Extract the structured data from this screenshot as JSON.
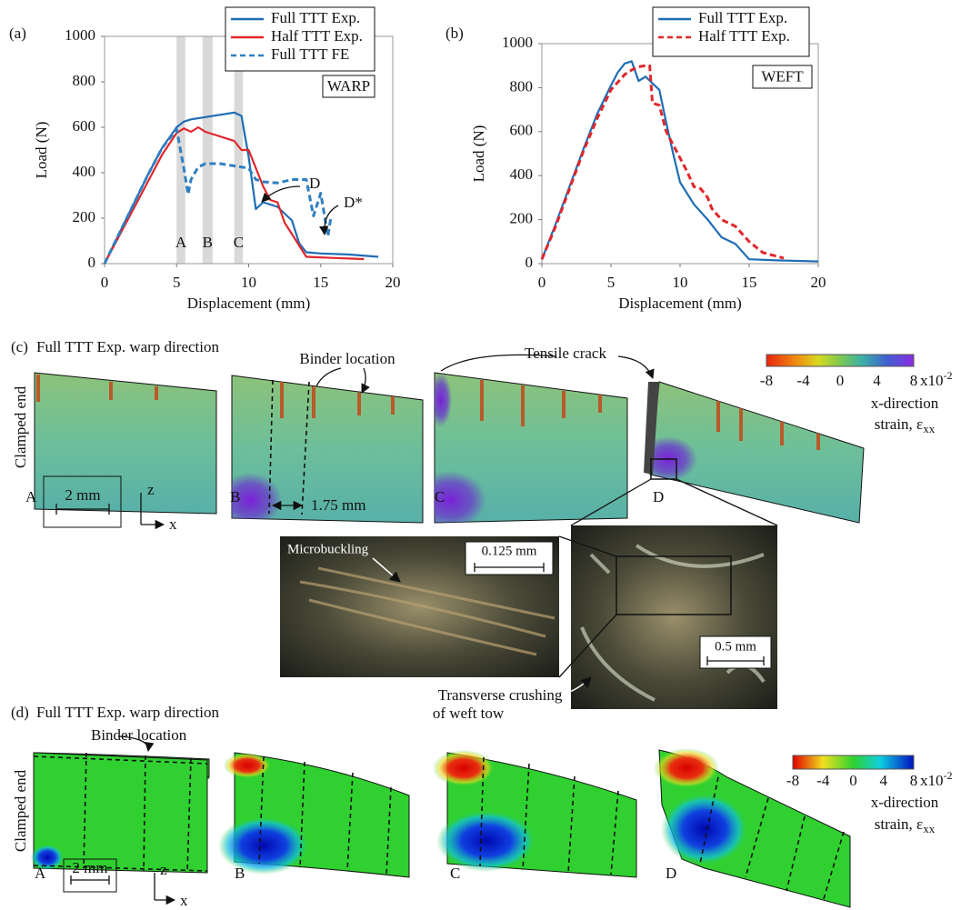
{
  "chart_data": [
    {
      "type": "line",
      "panel": "(a)",
      "xlabel": "Displacement (mm)",
      "ylabel": "Load (N)",
      "xlim": [
        0,
        20
      ],
      "xticks": [
        0,
        5,
        10,
        15,
        20
      ],
      "ylim": [
        0,
        1000
      ],
      "yticks": [
        0,
        200,
        400,
        600,
        800,
        1000
      ],
      "box_label": "WARP",
      "bands": [
        {
          "label": "A",
          "x0": 5,
          "x1": 5.6
        },
        {
          "label": "B",
          "x0": 6.8,
          "x1": 7.5
        },
        {
          "label": "C",
          "x0": 9,
          "x1": 9.6
        }
      ],
      "annotations": [
        "D",
        "D*"
      ],
      "series": [
        {
          "name": "Full TTT Exp.",
          "color": "#1f6db5",
          "style": "solid",
          "x": [
            0,
            1,
            2,
            3,
            4,
            5,
            5.5,
            6,
            7,
            8,
            9,
            9.5,
            10,
            10.5,
            11,
            12,
            13,
            13.5,
            14,
            15,
            17,
            19
          ],
          "values": [
            0,
            130,
            260,
            390,
            510,
            600,
            625,
            635,
            645,
            655,
            665,
            650,
            470,
            240,
            270,
            250,
            190,
            90,
            50,
            45,
            40,
            30
          ]
        },
        {
          "name": "Half TTT Exp.",
          "color": "#e0262b",
          "style": "solid",
          "x": [
            0,
            1,
            2,
            3,
            4,
            5,
            5.5,
            6,
            6.5,
            7,
            8,
            9,
            9.5,
            10,
            11,
            11.5,
            12,
            12.5,
            13,
            14,
            16,
            18
          ],
          "values": [
            0,
            120,
            240,
            360,
            480,
            575,
            595,
            580,
            600,
            580,
            560,
            540,
            500,
            500,
            340,
            280,
            270,
            180,
            130,
            30,
            25,
            20
          ]
        },
        {
          "name": "Full TTT FE",
          "color": "#2f7fc1",
          "style": "dashed",
          "x": [
            0,
            1,
            2,
            3,
            4,
            5,
            5.5,
            5.8,
            6,
            6.5,
            7,
            8,
            9,
            10,
            10.5,
            11,
            12,
            13,
            14,
            14.5,
            15,
            15.5,
            15.7
          ],
          "values": [
            0,
            130,
            260,
            390,
            510,
            590,
            420,
            305,
            370,
            425,
            440,
            440,
            430,
            420,
            370,
            360,
            355,
            370,
            370,
            210,
            310,
            120,
            200
          ]
        }
      ]
    },
    {
      "type": "line",
      "panel": "(b)",
      "xlabel": "Displacement (mm)",
      "ylabel": "Load (N)",
      "xlim": [
        0,
        20
      ],
      "xticks": [
        0,
        5,
        10,
        15,
        20
      ],
      "ylim": [
        0,
        1000
      ],
      "yticks": [
        0,
        200,
        400,
        600,
        800,
        1000
      ],
      "box_label": "WEFT",
      "series": [
        {
          "name": "Full TTT Exp.",
          "color": "#1f6db5",
          "style": "solid",
          "x": [
            0,
            1,
            2,
            3,
            4,
            5,
            5.5,
            6,
            6.5,
            7,
            7.5,
            8,
            8.5,
            9,
            9.5,
            10,
            10.5,
            11,
            12,
            13,
            14,
            15,
            17,
            20
          ],
          "values": [
            20,
            180,
            350,
            520,
            680,
            810,
            870,
            910,
            920,
            830,
            850,
            820,
            790,
            640,
            500,
            370,
            320,
            270,
            200,
            120,
            90,
            20,
            15,
            10
          ]
        },
        {
          "name": "Half TTT Exp.",
          "color": "#e0262b",
          "style": "dashed",
          "x": [
            0,
            1,
            2,
            3,
            4,
            5,
            6,
            6.5,
            7,
            7.5,
            7.8,
            8,
            8.5,
            9,
            10,
            10.5,
            11,
            11.5,
            12,
            12.3,
            13,
            14,
            15,
            16,
            17.5
          ],
          "values": [
            20,
            170,
            340,
            510,
            660,
            790,
            860,
            880,
            895,
            900,
            900,
            730,
            720,
            600,
            480,
            420,
            350,
            340,
            300,
            250,
            200,
            170,
            100,
            50,
            25
          ]
        }
      ]
    }
  ],
  "panel_c": {
    "label": "(c)",
    "title": "Full TTT Exp. warp direction",
    "clamped": "Clamped end",
    "binder": "Binder location",
    "crack": "Tensile crack",
    "stages": [
      "A",
      "B",
      "C",
      "D"
    ],
    "scale": "2 mm",
    "spacing": "1.75 mm",
    "axis_z": "z",
    "axis_x": "x",
    "colorbar_ticks": [
      -8,
      -4,
      0,
      4,
      8
    ],
    "colorbar_unit": "x10",
    "colorbar_exp": "-2",
    "colorbar_title": "x-direction",
    "colorbar_strain": "strain, ε",
    "colorbar_sub": "xx",
    "microbuckling": "Microbuckling",
    "scale_small": "0.125 mm",
    "scale_large": "0.5 mm",
    "crushing": [
      "Transverse crushing",
      "of weft tow"
    ]
  },
  "panel_d": {
    "label": "(d)",
    "title": "Full TTT Exp. warp direction",
    "clamped": "Clamped end",
    "binder": "Binder location",
    "stages": [
      "A",
      "B",
      "C",
      "D"
    ],
    "scale": "2 mm",
    "axis_z": "z",
    "axis_x": "x",
    "colorbar_ticks": [
      -8,
      -4,
      0,
      4,
      8
    ],
    "colorbar_unit": "x10",
    "colorbar_exp": "-2",
    "colorbar_title": "x-direction",
    "colorbar_strain": "strain, ε",
    "colorbar_sub": "xx"
  }
}
